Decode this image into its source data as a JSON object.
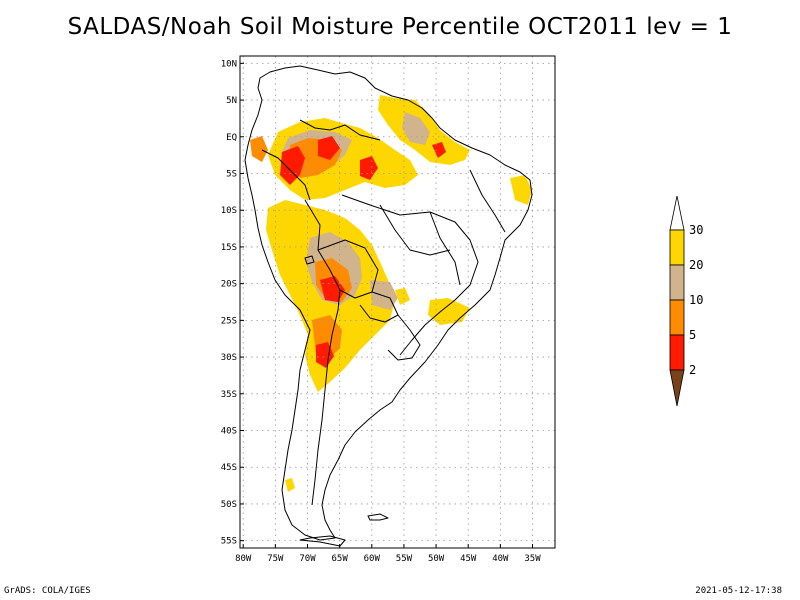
{
  "title": "SALDAS/Noah Soil Moisture Percentile OCT2011 lev = 1",
  "footer": {
    "left": "GrADS: COLA/IGES",
    "right": "2021-05-12-17:38"
  },
  "map": {
    "lon_range": [
      -80.5,
      -31.5
    ],
    "lat_range": [
      -56,
      11
    ],
    "grid": "dotted",
    "lat_ticks": [
      {
        "value": 10,
        "label": "10N"
      },
      {
        "value": 5,
        "label": "5N"
      },
      {
        "value": 0,
        "label": "EQ"
      },
      {
        "value": -5,
        "label": "5S"
      },
      {
        "value": -10,
        "label": "10S"
      },
      {
        "value": -15,
        "label": "15S"
      },
      {
        "value": -20,
        "label": "20S"
      },
      {
        "value": -25,
        "label": "25S"
      },
      {
        "value": -30,
        "label": "30S"
      },
      {
        "value": -35,
        "label": "35S"
      },
      {
        "value": -40,
        "label": "40S"
      },
      {
        "value": -45,
        "label": "45S"
      },
      {
        "value": -50,
        "label": "50S"
      },
      {
        "value": -55,
        "label": "55S"
      }
    ],
    "lon_ticks": [
      {
        "value": -80,
        "label": "80W"
      },
      {
        "value": -75,
        "label": "75W"
      },
      {
        "value": -70,
        "label": "70W"
      },
      {
        "value": -65,
        "label": "65W"
      },
      {
        "value": -60,
        "label": "60W"
      },
      {
        "value": -55,
        "label": "55W"
      },
      {
        "value": -50,
        "label": "50W"
      },
      {
        "value": -45,
        "label": "45W"
      },
      {
        "value": -40,
        "label": "40W"
      },
      {
        "value": -35,
        "label": "35W"
      }
    ]
  },
  "colorbar": {
    "bins": [
      {
        "color": "#7a4218",
        "label": ""
      },
      {
        "color": "#ff1a00",
        "label": "2"
      },
      {
        "color": "#ff8c00",
        "label": "5"
      },
      {
        "color": "#d2b48c",
        "label": "10"
      },
      {
        "color": "#ffd700",
        "label": "20"
      },
      {
        "color": "#ffffff",
        "label": "30"
      }
    ]
  },
  "legend_colors": {
    "yellow": "#ffd700",
    "tan": "#d2b48c",
    "orange": "#ff8c00",
    "red": "#ff1a00",
    "brown": "#7a4218"
  }
}
